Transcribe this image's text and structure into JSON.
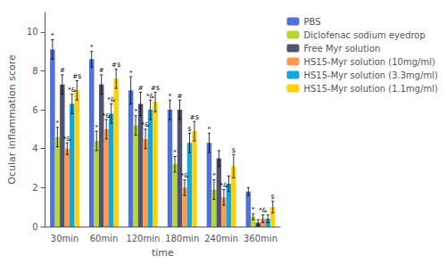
{
  "chart_data": {
    "type": "bar",
    "xlabel": "time",
    "ylabel": "Ocular inflammation score",
    "categories": [
      "30min",
      "60min",
      "120min",
      "180min",
      "240min",
      "360min"
    ],
    "series": [
      {
        "name": "PBS",
        "values": [
          9.1,
          8.6,
          7.0,
          6.0,
          4.3,
          1.8
        ],
        "errors": [
          0.5,
          0.4,
          0.7,
          0.5,
          0.5,
          0.2
        ],
        "annotations": [
          "*",
          "*",
          "*",
          "*",
          "*",
          null
        ]
      },
      {
        "name": "Diclofenac sodium eyedrop",
        "values": [
          4.6,
          4.4,
          5.2,
          3.2,
          1.9,
          0.5
        ],
        "errors": [
          0.5,
          0.5,
          0.5,
          0.4,
          0.5,
          0.15
        ],
        "annotations": [
          "*",
          "*",
          "*",
          "*",
          "*",
          "*"
        ]
      },
      {
        "name": "Free Myr solution",
        "values": [
          7.3,
          7.3,
          6.3,
          6.0,
          3.5,
          0.2
        ],
        "errors": [
          0.5,
          0.5,
          0.6,
          0.5,
          0.4,
          0.15
        ],
        "annotations": [
          "#",
          "#",
          "#",
          "#",
          null,
          null
        ]
      },
      {
        "name": "HS15-Myr solution (10mg/ml)",
        "values": [
          4.0,
          5.0,
          4.5,
          2.0,
          1.5,
          0.4
        ],
        "errors": [
          0.3,
          0.5,
          0.5,
          0.4,
          0.4,
          0.2
        ],
        "annotations": [
          "*&",
          "*&",
          "*&",
          "*&",
          "*&",
          "*&"
        ]
      },
      {
        "name": "HS15-Myr solution (3.3mg/ml)",
        "values": [
          6.3,
          5.8,
          6.0,
          4.3,
          2.2,
          0.4
        ],
        "errors": [
          0.5,
          0.5,
          0.5,
          0.5,
          0.4,
          0.2
        ],
        "annotations": [
          "*&",
          "*&",
          "*&",
          "$",
          null,
          null
        ]
      },
      {
        "name": "HS15-Myr solution (1.1mg/ml)",
        "values": [
          7.0,
          7.6,
          6.4,
          4.9,
          3.1,
          1.0
        ],
        "errors": [
          0.5,
          0.5,
          0.5,
          0.5,
          0.6,
          0.3
        ],
        "annotations": [
          "#$",
          "#$",
          "#$",
          "#$",
          "$",
          "$"
        ]
      }
    ],
    "ylim": [
      0,
      11
    ],
    "yticks": [
      0,
      2,
      4,
      6,
      8,
      10
    ],
    "grid": false,
    "legend": "upper right"
  }
}
